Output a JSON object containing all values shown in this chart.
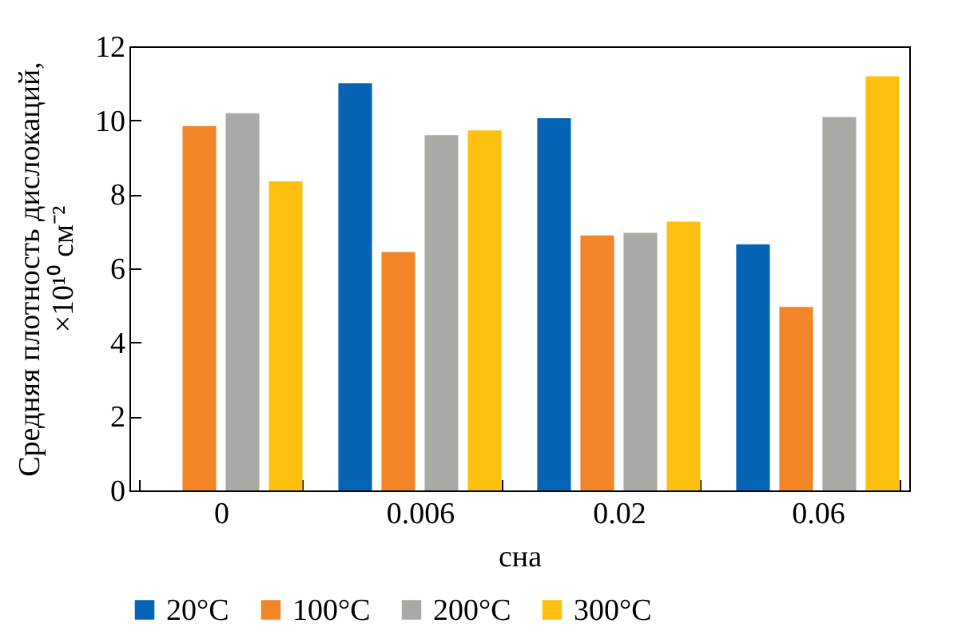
{
  "chart_data": {
    "type": "bar",
    "xlabel": "сна",
    "ylabel": "Средняя плотность дислокаций, ×10¹⁰ см⁻²",
    "categories": [
      "0",
      "0.006",
      "0.02",
      "0.06"
    ],
    "series": [
      {
        "name": "20°C",
        "color": "#0563b5",
        "values": [
          null,
          11.0,
          10.06,
          6.65
        ]
      },
      {
        "name": "100°C",
        "color": "#f28527",
        "values": [
          9.84,
          6.44,
          6.89,
          4.96
        ]
      },
      {
        "name": "200°C",
        "color": "#a9a9a6",
        "values": [
          10.19,
          9.6,
          6.96,
          10.09
        ]
      },
      {
        "name": "300°C",
        "color": "#fdc010",
        "values": [
          8.35,
          9.73,
          7.26,
          11.19
        ]
      }
    ],
    "ylim": [
      0,
      12
    ],
    "yticks": [
      0,
      2,
      4,
      6,
      8,
      10,
      12
    ],
    "grid": false,
    "legend": "bottom"
  }
}
